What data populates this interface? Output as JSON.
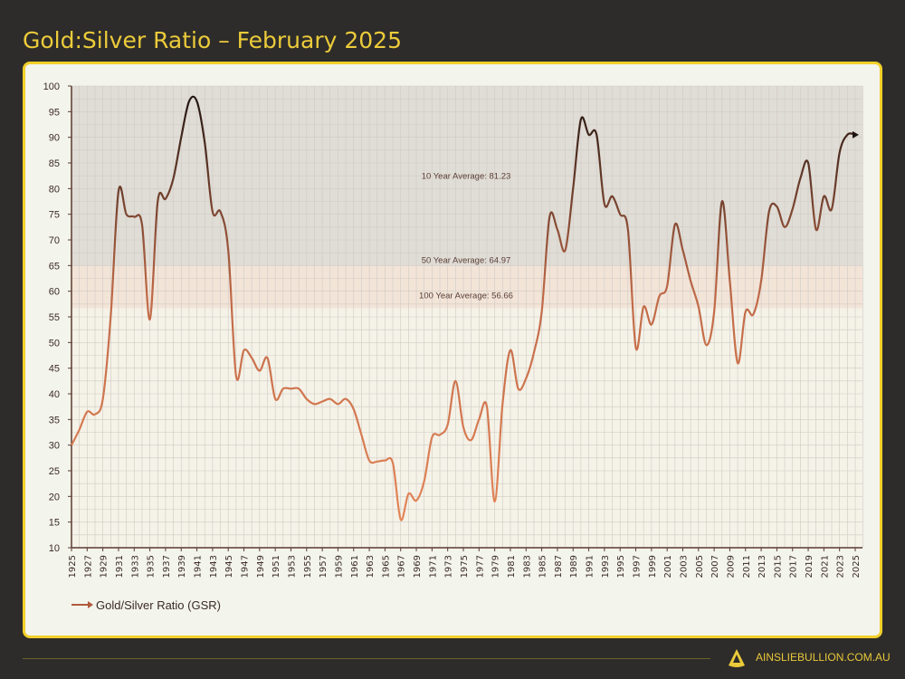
{
  "title": "Gold:Silver Ratio – February 2025",
  "footer": {
    "site": "AINSLIEBULLION.COM.AU",
    "logo_letter": "A"
  },
  "colors": {
    "background": "#2d2c2a",
    "accent": "#f0cf2a",
    "line_top": "#1e1410",
    "line_bottom": "#e8895a",
    "card": "#f3f4ec"
  },
  "chart_data": {
    "type": "line",
    "title": "",
    "xlabel": "",
    "ylabel": "",
    "xlim": [
      1925,
      2025
    ],
    "ylim": [
      10,
      100
    ],
    "yticks": [
      10,
      15,
      20,
      25,
      30,
      35,
      40,
      45,
      50,
      55,
      60,
      65,
      70,
      75,
      80,
      85,
      90,
      95,
      100
    ],
    "xtick_step": 2,
    "grid": true,
    "legend": "bottom-left",
    "series": [
      {
        "name": "Gold/Silver Ratio (GSR)",
        "x": [
          1925,
          1926,
          1927,
          1928,
          1929,
          1930,
          1931,
          1932,
          1933,
          1934,
          1935,
          1936,
          1937,
          1938,
          1939,
          1940,
          1941,
          1942,
          1943,
          1944,
          1945,
          1946,
          1947,
          1948,
          1949,
          1950,
          1951,
          1952,
          1953,
          1954,
          1955,
          1956,
          1957,
          1958,
          1959,
          1960,
          1961,
          1962,
          1963,
          1964,
          1965,
          1966,
          1967,
          1968,
          1969,
          1970,
          1971,
          1972,
          1973,
          1974,
          1975,
          1976,
          1977,
          1978,
          1979,
          1980,
          1981,
          1982,
          1983,
          1984,
          1985,
          1986,
          1987,
          1988,
          1989,
          1990,
          1991,
          1992,
          1993,
          1994,
          1995,
          1996,
          1997,
          1998,
          1999,
          2000,
          2001,
          2002,
          2003,
          2004,
          2005,
          2006,
          2007,
          2008,
          2009,
          2010,
          2011,
          2012,
          2013,
          2014,
          2015,
          2016,
          2017,
          2018,
          2019,
          2020,
          2021,
          2022,
          2023,
          2024,
          2025
        ],
        "y": [
          30,
          33,
          36.5,
          36,
          39,
          55,
          79.5,
          75,
          74.5,
          73,
          54.5,
          77.5,
          78,
          82,
          90,
          97,
          97,
          89,
          75.5,
          75.5,
          68,
          43.5,
          48.5,
          47,
          44.5,
          47,
          39,
          41,
          41,
          41,
          39,
          38,
          38.5,
          39,
          38,
          39,
          37,
          32,
          27,
          26.8,
          27,
          26.5,
          15.5,
          20.5,
          19.2,
          23,
          31.5,
          32,
          34,
          42.5,
          33.5,
          31,
          35,
          37.5,
          19,
          38,
          48.5,
          41,
          43,
          48,
          56,
          74.5,
          72,
          68,
          80,
          93.5,
          90.5,
          90.5,
          77,
          78.5,
          75,
          72,
          49,
          57,
          53.5,
          59,
          61,
          73,
          68,
          62,
          57,
          49.5,
          56,
          77.5,
          62,
          46,
          56,
          55.5,
          62,
          75.5,
          76.5,
          72.5,
          76,
          82,
          85,
          72,
          78.5,
          76,
          87,
          90.5,
          90.5
        ]
      }
    ],
    "annotations": [
      {
        "label": "10 Year Average: 81.23",
        "value": 81.23
      },
      {
        "label": "50 Year Average: 64.97",
        "value": 64.97
      },
      {
        "label": "100 Year Average: 56.66",
        "value": 56.66
      }
    ]
  }
}
